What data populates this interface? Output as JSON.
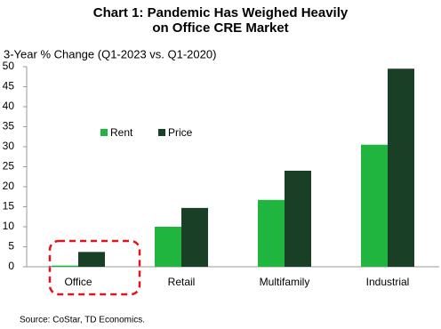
{
  "chart_data": {
    "type": "bar",
    "title": "Chart 1: Pandemic Has Weighed Heavily on Office CRE Market",
    "subtitle": "3-Year % Change (Q1-2023 vs. Q1-2020)",
    "categories": [
      "Office",
      "Retail",
      "Multifamily",
      "Industrial"
    ],
    "series": [
      {
        "name": "Rent",
        "color": "#1fb53f",
        "values": [
          0.3,
          10,
          16.7,
          30.5
        ]
      },
      {
        "name": "Price",
        "color": "#1a3f27",
        "values": [
          3.7,
          14.7,
          24,
          49.5
        ]
      }
    ],
    "ylim": [
      0,
      50
    ],
    "yticks": [
      0,
      5,
      10,
      15,
      20,
      25,
      30,
      35,
      40,
      45,
      50
    ],
    "grid": false,
    "source": "Source: CoStar, TD Economics."
  }
}
